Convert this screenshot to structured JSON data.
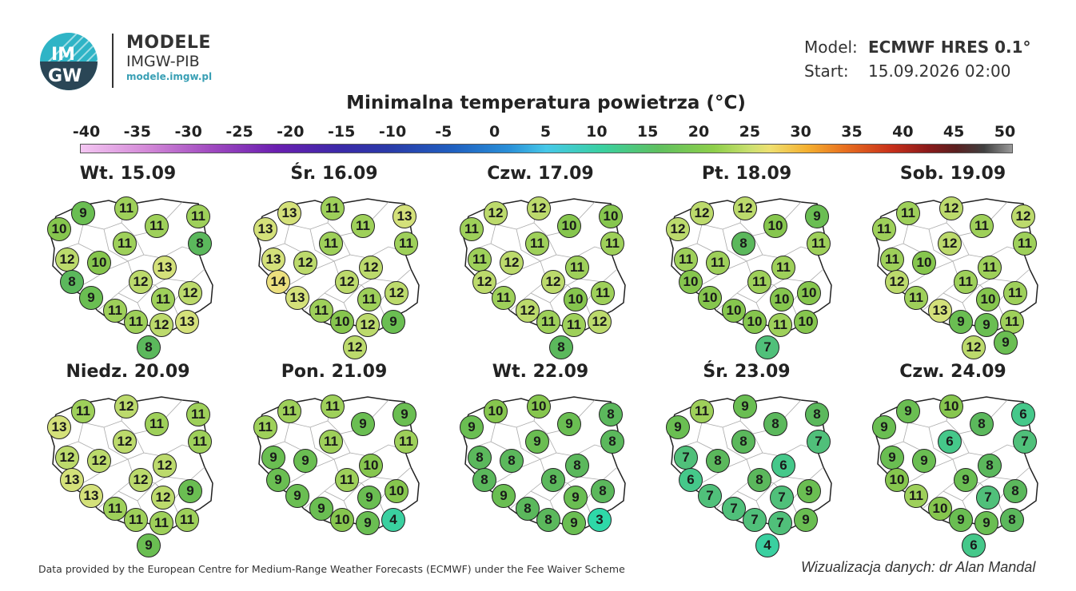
{
  "header": {
    "logo_text": "IM GW",
    "brand_title": "MODELE",
    "brand_sub": "IMGW-PIB",
    "brand_url": "modele.imgw.pl"
  },
  "model_info": {
    "model_label": "Model:",
    "model_value": "ECMWF HRES 0.1°",
    "start_label": "Start:",
    "start_value": "15.09.2026 02:00"
  },
  "title": "Minimalna temperatura powietrza (°C)",
  "scale": {
    "ticks": [
      "-40",
      "-35",
      "-30",
      "-25",
      "-20",
      "-15",
      "-10",
      "-5",
      "0",
      "5",
      "10",
      "15",
      "20",
      "25",
      "30",
      "35",
      "40",
      "45",
      "50"
    ]
  },
  "days": [
    {
      "label": "Wt. 15.09",
      "values": [
        10,
        9,
        11,
        11,
        11,
        8,
        12,
        11,
        10,
        13,
        8,
        12,
        9,
        11,
        12,
        11,
        11,
        12,
        13,
        8
      ]
    },
    {
      "label": "Śr. 16.09",
      "values": [
        13,
        13,
        11,
        11,
        13,
        11,
        13,
        11,
        12,
        12,
        14,
        12,
        13,
        11,
        12,
        11,
        10,
        12,
        9,
        12
      ]
    },
    {
      "label": "Czw. 17.09",
      "values": [
        11,
        12,
        12,
        10,
        10,
        11,
        11,
        11,
        12,
        11,
        12,
        12,
        11,
        10,
        11,
        12,
        11,
        11,
        12,
        8
      ]
    },
    {
      "label": "Pt. 18.09",
      "values": [
        12,
        12,
        12,
        10,
        9,
        11,
        11,
        8,
        11,
        11,
        10,
        11,
        10,
        10,
        10,
        10,
        10,
        11,
        10,
        7
      ]
    },
    {
      "label": "Sob. 19.09",
      "values": [
        11,
        11,
        12,
        11,
        12,
        11,
        11,
        12,
        10,
        11,
        12,
        11,
        11,
        10,
        11,
        13,
        9,
        9,
        11,
        12,
        9
      ]
    },
    {
      "label": "Niedz. 20.09",
      "values": [
        13,
        11,
        12,
        11,
        11,
        11,
        12,
        12,
        12,
        12,
        13,
        12,
        13,
        12,
        9,
        11,
        11,
        11,
        11,
        9
      ]
    },
    {
      "label": "Pon. 21.09",
      "values": [
        11,
        11,
        11,
        9,
        9,
        11,
        9,
        11,
        9,
        10,
        9,
        11,
        9,
        9,
        10,
        9,
        10,
        9,
        4
      ]
    },
    {
      "label": "Wt. 22.09",
      "values": [
        9,
        10,
        10,
        9,
        8,
        8,
        8,
        9,
        8,
        8,
        8,
        8,
        9,
        9,
        8,
        8,
        8,
        9,
        3
      ]
    },
    {
      "label": "Śr. 23.09",
      "values": [
        9,
        11,
        9,
        8,
        8,
        7,
        7,
        8,
        8,
        6,
        6,
        8,
        7,
        7,
        9,
        7,
        7,
        7,
        9,
        4
      ]
    },
    {
      "label": "Czw. 24.09",
      "values": [
        9,
        9,
        10,
        8,
        6,
        7,
        9,
        6,
        9,
        8,
        10,
        9,
        11,
        7,
        8,
        10,
        9,
        9,
        8,
        6
      ]
    }
  ],
  "footer": {
    "left": "Data provided by the European Centre for Medium-Range Weather Forecasts (ECMWF) under the Fee Waiver Scheme",
    "right": "Wizualizacja danych: dr Alan Mandal"
  },
  "colors": {
    "scale_stops": {
      "3": "#2ed8a8",
      "4": "#3ad0a0",
      "6": "#45c88a",
      "7": "#50c07a",
      "8": "#5bb85c",
      "9": "#6abe52",
      "10": "#86c64e",
      "11": "#9ed05a",
      "12": "#bcda6c",
      "13": "#d4e17a",
      "14": "#ece07e"
    }
  }
}
